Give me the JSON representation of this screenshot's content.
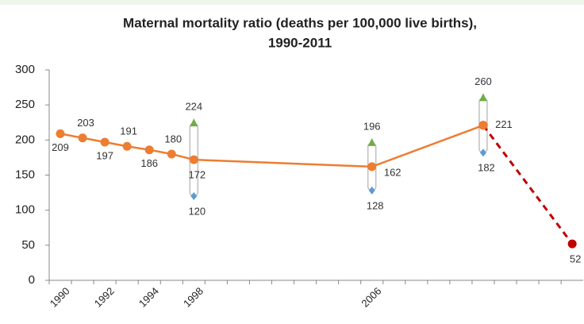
{
  "chart_data": {
    "type": "line",
    "title": [
      "Maternal mortality ratio (deaths per 100,000 live births),",
      "1990-2011"
    ],
    "categories": [
      "1990",
      null,
      "1992",
      null,
      "1994",
      null,
      "1998",
      null,
      null,
      null,
      null,
      null,
      null,
      null,
      "2006",
      null,
      null,
      null,
      null,
      null,
      null,
      null,
      null,
      null
    ],
    "ylim": [
      0,
      300
    ],
    "yticks": [
      0,
      50,
      100,
      150,
      200,
      250,
      300
    ],
    "grid": false,
    "span_gaps": true,
    "series": [
      {
        "color": "#c00000",
        "dashed": true,
        "marker": "circle",
        "values": [
          null,
          null,
          null,
          null,
          null,
          null,
          null,
          null,
          null,
          null,
          null,
          null,
          null,
          null,
          null,
          null,
          null,
          null,
          null,
          221,
          null,
          null,
          null,
          52
        ]
      },
      {
        "color": "#ed7d31",
        "dashed": false,
        "marker": "circle",
        "values": [
          209,
          203,
          197,
          191,
          186,
          180,
          172,
          null,
          null,
          null,
          null,
          null,
          null,
          null,
          162,
          null,
          null,
          null,
          null,
          221,
          null,
          null,
          null,
          null
        ]
      }
    ],
    "range_series": {
      "upper": {
        "color": "#70ad47",
        "marker": "triangle",
        "values": [
          null,
          null,
          null,
          null,
          null,
          null,
          224,
          null,
          null,
          null,
          null,
          null,
          null,
          null,
          196,
          null,
          null,
          null,
          null,
          260,
          null,
          null,
          null,
          null
        ]
      },
      "lower": {
        "color": "#5b9bd5",
        "marker": "diamond",
        "values": [
          null,
          null,
          null,
          null,
          null,
          null,
          120,
          null,
          null,
          null,
          null,
          null,
          null,
          null,
          128,
          null,
          null,
          null,
          null,
          182,
          null,
          null,
          null,
          null
        ]
      },
      "bar_color": "#bfbfbf"
    }
  }
}
